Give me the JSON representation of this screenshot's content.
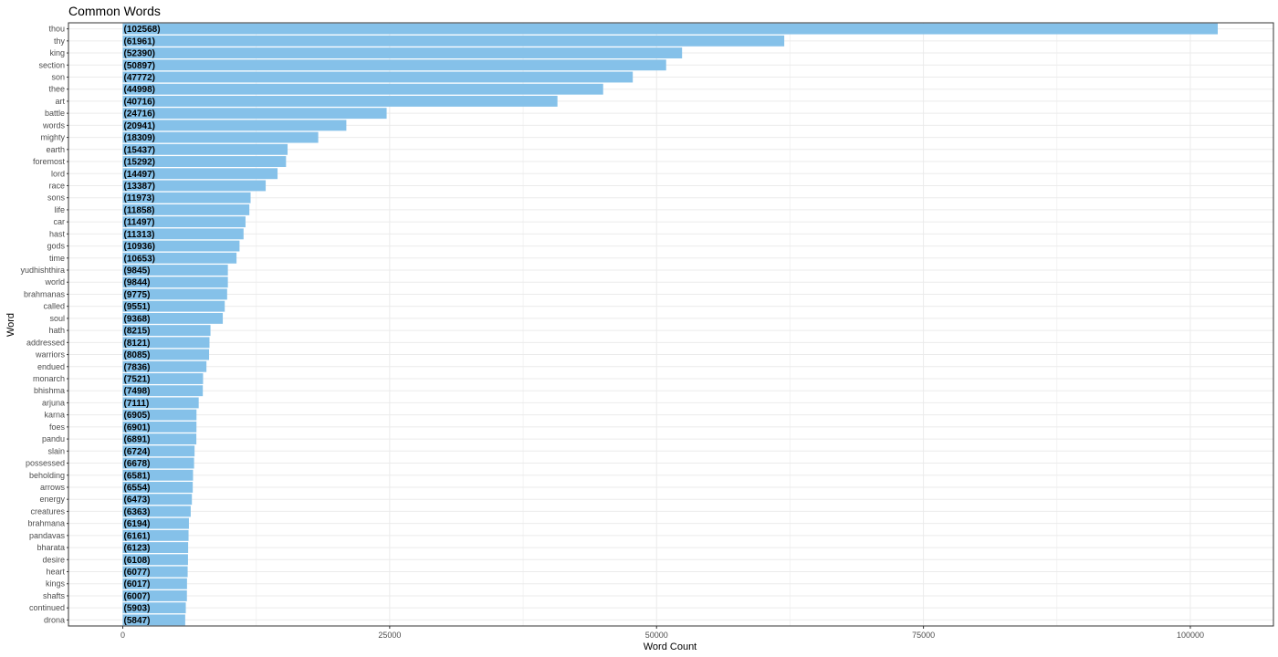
{
  "chart_data": {
    "type": "bar",
    "orientation": "horizontal",
    "title": "Common Words",
    "xlabel": "Word Count",
    "ylabel": "Word",
    "xlim": [
      -10000,
      108000
    ],
    "xticks": [
      0,
      25000,
      50000,
      75000,
      100000
    ],
    "xtick_labels": [
      "0",
      "25000",
      "50000",
      "75000",
      "100000"
    ],
    "grid": true,
    "bar_color": "#85C1E9",
    "categories": [
      "thou",
      "thy",
      "king",
      "section",
      "son",
      "thee",
      "art",
      "battle",
      "words",
      "mighty",
      "earth",
      "foremost",
      "lord",
      "race",
      "sons",
      "life",
      "car",
      "hast",
      "gods",
      "time",
      "yudhishthira",
      "world",
      "brahmanas",
      "called",
      "soul",
      "hath",
      "addressed",
      "warriors",
      "endued",
      "monarch",
      "bhishma",
      "arjuna",
      "karna",
      "foes",
      "pandu",
      "slain",
      "possessed",
      "beholding",
      "arrows",
      "energy",
      "creatures",
      "brahmana",
      "pandavas",
      "bharata",
      "desire",
      "heart",
      "kings",
      "shafts",
      "continued",
      "drona"
    ],
    "values": [
      102568,
      61961,
      52390,
      50897,
      47772,
      44998,
      40716,
      24716,
      20941,
      18309,
      15437,
      15292,
      14497,
      13387,
      11973,
      11858,
      11497,
      11313,
      10936,
      10653,
      9845,
      9844,
      9775,
      9551,
      9368,
      8215,
      8121,
      8085,
      7836,
      7521,
      7498,
      7111,
      6905,
      6901,
      6891,
      6724,
      6678,
      6581,
      6554,
      6473,
      6363,
      6194,
      6161,
      6123,
      6108,
      6077,
      6017,
      6007,
      5903,
      5847
    ],
    "data_labels": [
      "(102568)",
      "(61961)",
      "(52390)",
      "(50897)",
      "(47772)",
      "(44998)",
      "(40716)",
      "(24716)",
      "(20941)",
      "(18309)",
      "(15437)",
      "(15292)",
      "(14497)",
      "(13387)",
      "(11973)",
      "(11858)",
      "(11497)",
      "(11313)",
      "(10936)",
      "(10653)",
      "(9845)",
      "(9844)",
      "(9775)",
      "(9551)",
      "(9368)",
      "(8215)",
      "(8121)",
      "(8085)",
      "(7836)",
      "(7521)",
      "(7498)",
      "(7111)",
      "(6905)",
      "(6901)",
      "(6891)",
      "(6724)",
      "(6678)",
      "(6581)",
      "(6554)",
      "(6473)",
      "(6363)",
      "(6194)",
      "(6161)",
      "(6123)",
      "(6108)",
      "(6077)",
      "(6017)",
      "(6007)",
      "(5903)",
      "(5847)"
    ]
  }
}
